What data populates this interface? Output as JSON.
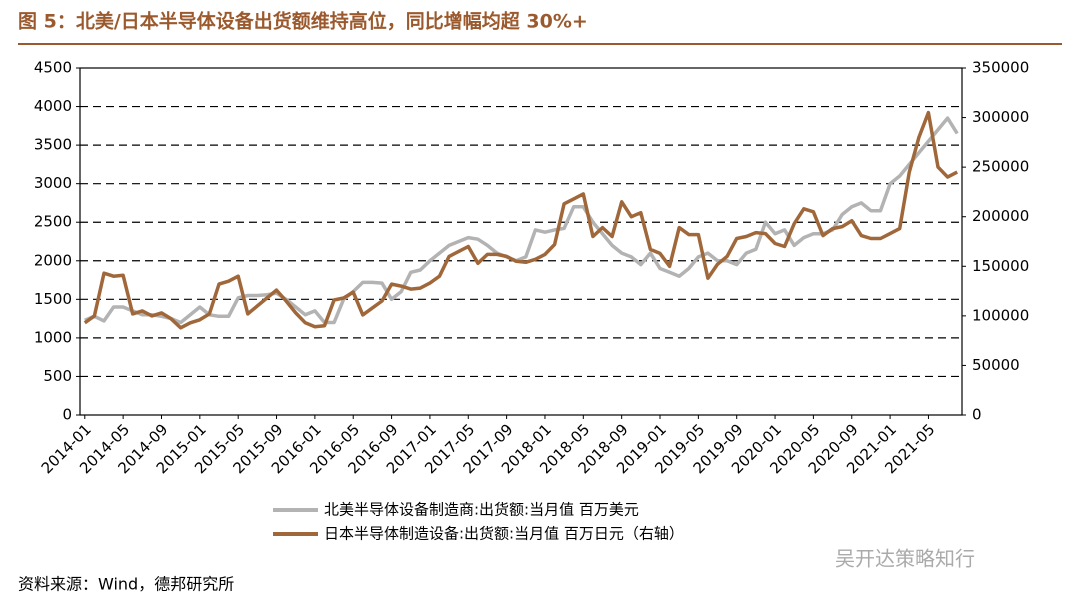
{
  "chart_data": {
    "type": "line",
    "title": "图 5：北美/日本半导体设备出货额维持高位，同比增幅均超 30%+",
    "source": "资料来源：Wind，德邦研究所",
    "watermark": "吴开达策略知行",
    "categories": [
      "2014-01",
      null,
      null,
      null,
      "2014-05",
      null,
      null,
      null,
      "2014-09",
      null,
      null,
      null,
      "2015-01",
      null,
      null,
      null,
      "2015-05",
      null,
      null,
      null,
      "2015-09",
      null,
      null,
      null,
      "2016-01",
      null,
      null,
      null,
      "2016-05",
      null,
      null,
      null,
      "2016-09",
      null,
      null,
      null,
      "2017-01",
      null,
      null,
      null,
      "2017-05",
      null,
      null,
      null,
      "2017-09",
      null,
      null,
      null,
      "2018-01",
      null,
      null,
      null,
      "2018-05",
      null,
      null,
      null,
      "2018-09",
      null,
      null,
      null,
      "2019-01",
      null,
      null,
      null,
      "2019-05",
      null,
      null,
      null,
      "2019-09",
      null,
      null,
      null,
      "2020-01",
      null,
      null,
      null,
      "2020-05",
      null,
      null,
      null,
      "2020-09",
      null,
      null,
      null,
      "2021-01",
      null,
      null,
      null,
      "2021-05",
      null,
      null,
      null
    ],
    "series": [
      {
        "name": "北美半导体设备制造商:出货额:当月值 百万美元",
        "color": "#b3b3b3",
        "values": [
          1230,
          1280,
          1220,
          1400,
          1400,
          1350,
          1300,
          1300,
          1280,
          1250,
          1200,
          1300,
          1400,
          1300,
          1280,
          1280,
          1520,
          1550,
          1550,
          1560,
          1580,
          1500,
          1400,
          1300,
          1350,
          1200,
          1200,
          1500,
          1600,
          1720,
          1720,
          1710,
          1500,
          1600,
          1850,
          1880,
          2000,
          2100,
          2200,
          2250,
          2300,
          2280,
          2200,
          2100,
          2050,
          2000,
          2050,
          2400,
          2370,
          2400,
          2420,
          2700,
          2700,
          2500,
          2350,
          2200,
          2100,
          2050,
          1950,
          2100,
          1900,
          1850,
          1800,
          1900,
          2050,
          2100,
          2000,
          2000,
          1950,
          2100,
          2150,
          2500,
          2350,
          2400,
          2200,
          2300,
          2350,
          2350,
          2400,
          2600,
          2700,
          2750,
          2650,
          2650,
          3000,
          3100,
          3250,
          3400,
          3550,
          3700,
          3850,
          3650
        ]
      },
      {
        "name": "日本半导体制造设备:出货额:当月值 百万日元（右轴）",
        "color": "#a0683a",
        "axis": "y2",
        "values": [
          93000,
          100000,
          143000,
          140000,
          141000,
          102000,
          105000,
          100000,
          103000,
          97000,
          88000,
          93000,
          96000,
          102000,
          132000,
          135000,
          140000,
          102000,
          110000,
          118000,
          126000,
          115000,
          103000,
          93000,
          89000,
          90000,
          116000,
          118000,
          124000,
          101000,
          108000,
          115000,
          132000,
          130000,
          127000,
          128000,
          133000,
          140000,
          160000,
          165000,
          170000,
          153000,
          162000,
          162000,
          160000,
          155000,
          154000,
          157000,
          162000,
          172000,
          213000,
          218000,
          223000,
          180000,
          189000,
          180000,
          215000,
          200000,
          204000,
          167000,
          163000,
          150000,
          189000,
          182000,
          182000,
          138000,
          152000,
          160000,
          178000,
          180000,
          184000,
          183000,
          173000,
          170000,
          193000,
          208000,
          205000,
          181000,
          188000,
          190000,
          196000,
          181000,
          178000,
          178000,
          183000,
          188000,
          245000,
          280000,
          305000,
          250000,
          240000,
          245000
        ]
      }
    ],
    "ylim": [
      0,
      4500
    ],
    "yticks": [
      0,
      500,
      1000,
      1500,
      2000,
      2500,
      3000,
      3500,
      4000,
      4500
    ],
    "y2lim": [
      0,
      350000
    ],
    "y2ticks": [
      0,
      50000,
      100000,
      150000,
      200000,
      250000,
      300000,
      350000
    ],
    "grid": true
  }
}
